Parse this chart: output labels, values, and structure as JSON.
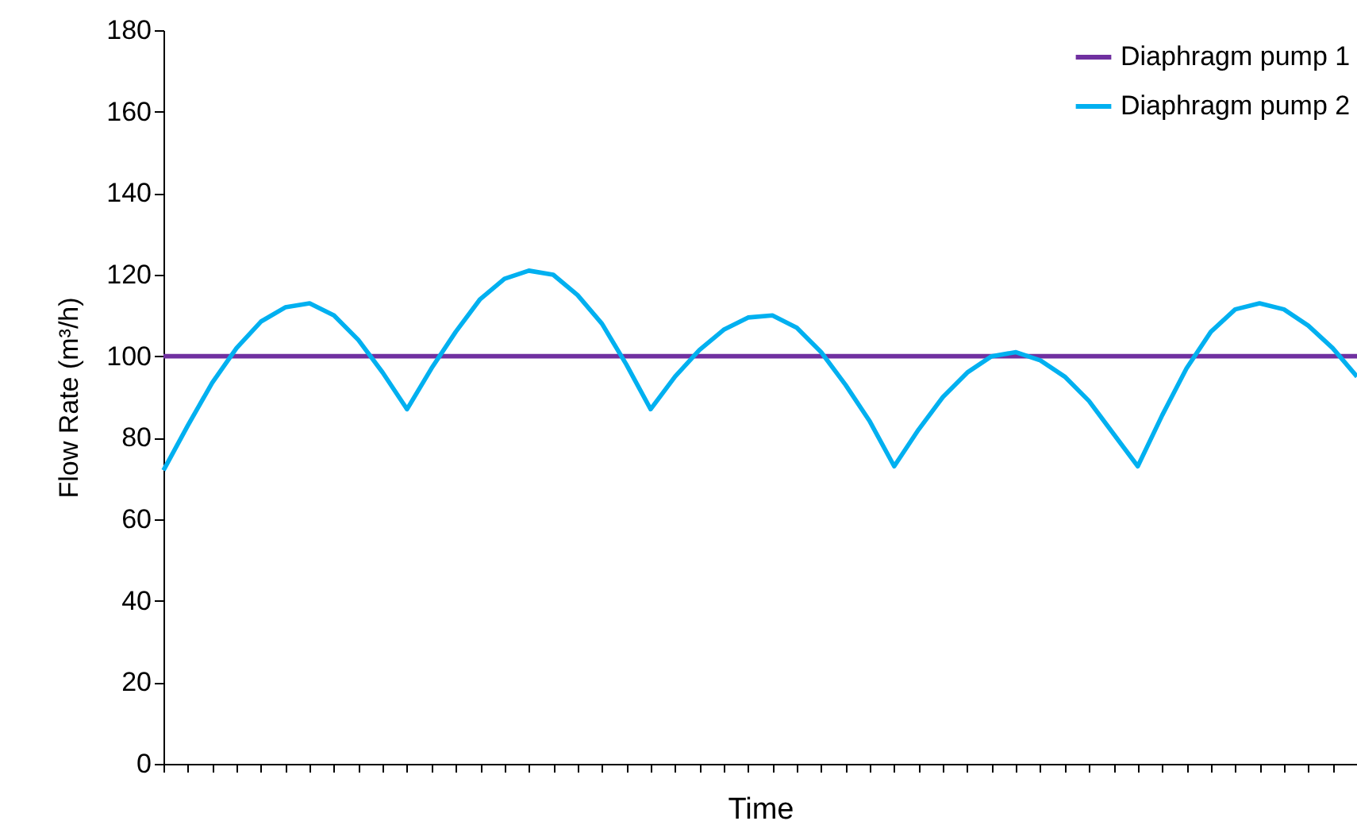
{
  "chart_data": {
    "type": "line",
    "xlabel": "Time",
    "ylabel": "Flow Rate (m³/h)",
    "ylim": [
      0,
      180
    ],
    "yticks": [
      0,
      20,
      40,
      60,
      80,
      100,
      120,
      140,
      160,
      180
    ],
    "grid": false,
    "legend": "top right",
    "marker": "none",
    "line_style": "solid",
    "categories": [
      null,
      null,
      null,
      null,
      null,
      null,
      null,
      null,
      null,
      null,
      null,
      null,
      null,
      null,
      null,
      null,
      null,
      null,
      null,
      null,
      null,
      null,
      null,
      null,
      null,
      null,
      null,
      null,
      null,
      null,
      null,
      null,
      null,
      null,
      null,
      null,
      null,
      null,
      null,
      null,
      null,
      null,
      null,
      null,
      null,
      null,
      null,
      null,
      null,
      null
    ],
    "series": [
      {
        "name": "Diaphragm pump 1",
        "color": "#7030a0",
        "values": [
          100,
          100,
          100,
          100,
          100,
          100,
          100,
          100,
          100,
          100,
          100,
          100,
          100,
          100,
          100,
          100,
          100,
          100,
          100,
          100,
          100,
          100,
          100,
          100,
          100,
          100,
          100,
          100,
          100,
          100,
          100,
          100,
          100,
          100,
          100,
          100,
          100,
          100,
          100,
          100,
          100,
          100,
          100,
          100,
          100,
          100,
          100,
          100,
          100,
          100
        ]
      },
      {
        "name": "Diaphragm pump 2",
        "color": "#00b0f0",
        "values": [
          72,
          83,
          93.5,
          102,
          108.5,
          112,
          113,
          110,
          104,
          96,
          87,
          97,
          106,
          114,
          119,
          121,
          120,
          115,
          108,
          98,
          87,
          95,
          101.5,
          106.5,
          109.5,
          110,
          107,
          101,
          93,
          84,
          73,
          82,
          90,
          96,
          100,
          101,
          99,
          95,
          89,
          81,
          73,
          85.5,
          97,
          106,
          111.5,
          113,
          111.5,
          107.5,
          102,
          95
        ]
      }
    ]
  }
}
